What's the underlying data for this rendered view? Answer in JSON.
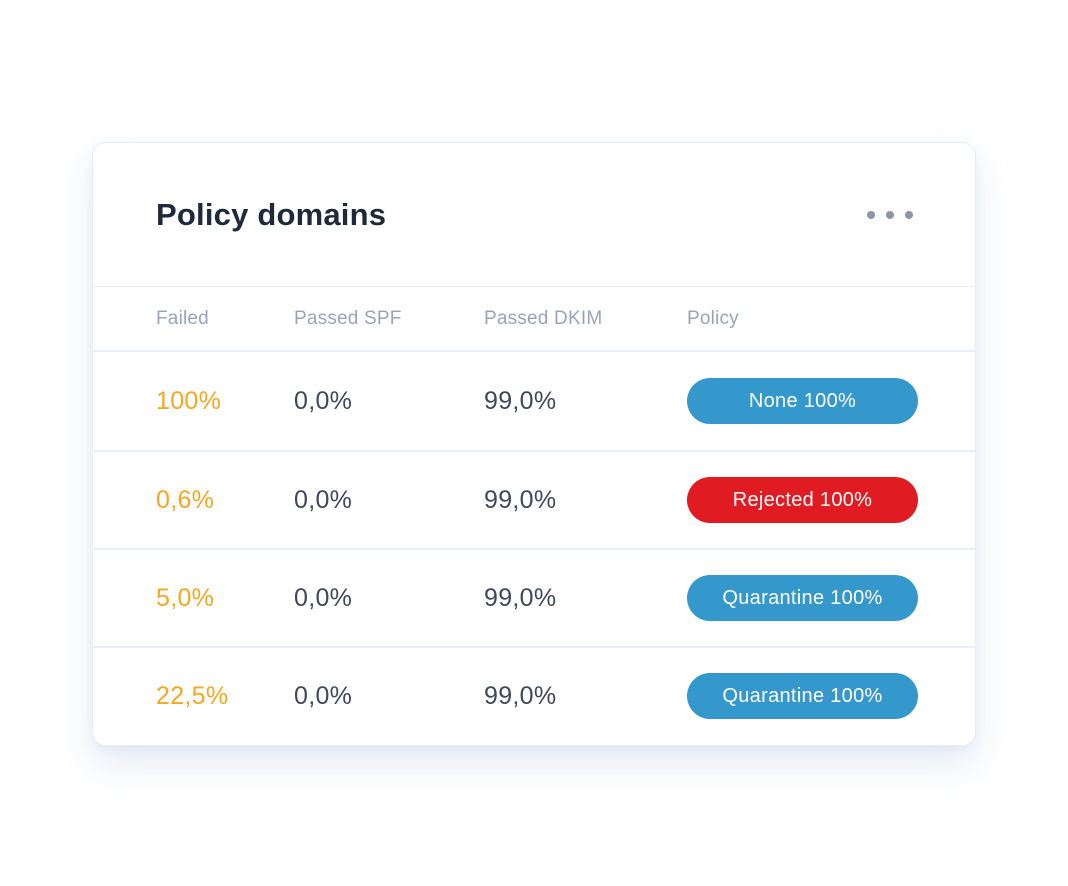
{
  "card": {
    "title": "Policy domains",
    "menu_icon": "ellipsis-menu-icon"
  },
  "table": {
    "columns": {
      "failed": "Failed",
      "passed_spf": "Passed SPF",
      "passed_dkim": "Passed DKIM",
      "policy": "Policy"
    },
    "rows": [
      {
        "failed": "100%",
        "passed_spf": "0,0%",
        "passed_dkim": "99,0%",
        "policy": {
          "label": "None 100%",
          "color": "#3598cc"
        }
      },
      {
        "failed": "0,6%",
        "passed_spf": "0,0%",
        "passed_dkim": "99,0%",
        "policy": {
          "label": "Rejected 100%",
          "color": "#e11b22"
        }
      },
      {
        "failed": "5,0%",
        "passed_spf": "0,0%",
        "passed_dkim": "99,0%",
        "policy": {
          "label": "Quarantine 100%",
          "color": "#3598cc"
        }
      },
      {
        "failed": "22,5%",
        "passed_spf": "0,0%",
        "passed_dkim": "99,0%",
        "policy": {
          "label": "Quarantine 100%",
          "color": "#3598cc"
        }
      }
    ]
  },
  "colors": {
    "failed_accent": "#f5a623",
    "badge_blue": "#3598cc",
    "badge_red": "#e11b22",
    "value_text": "#3f485c",
    "header_text": "#9aa4b8",
    "title_text": "#1e2a3b",
    "separator": "#e9eff8"
  }
}
